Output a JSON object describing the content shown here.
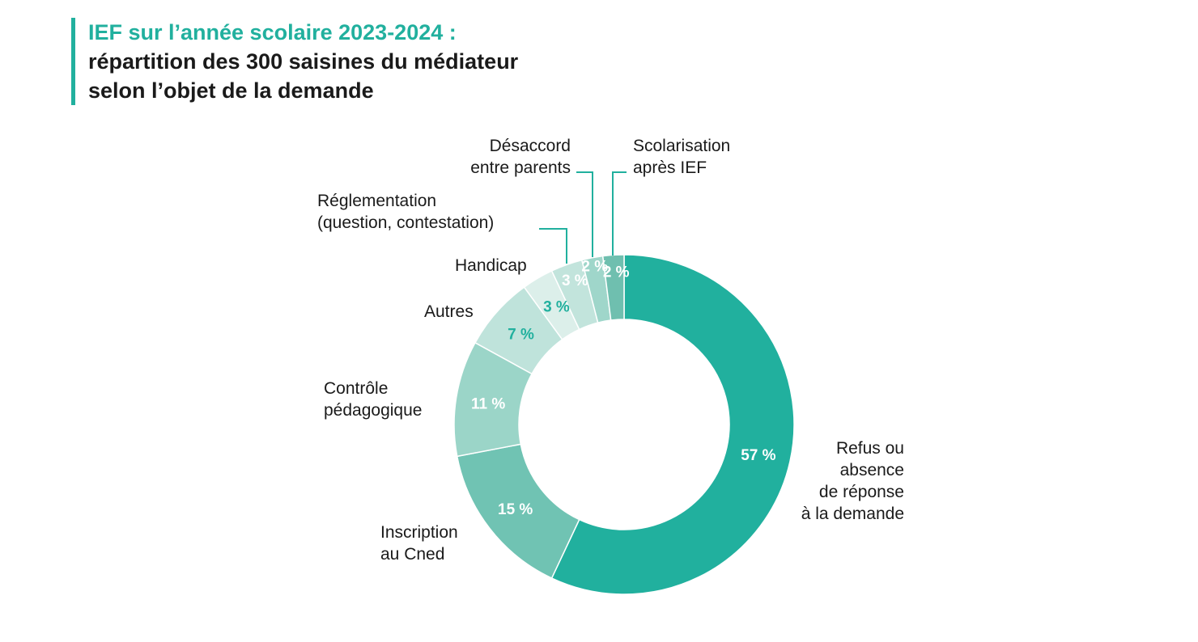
{
  "header": {
    "title": "IEF sur l’année scolaire 2023-2024 :",
    "subtitle_line1": "répartition des 300 saisines du médiateur",
    "subtitle_line2": "selon l’objet de la demande"
  },
  "colors": {
    "accent": "#21b09e",
    "text": "#1a1a1a"
  },
  "chart_data": {
    "type": "pie",
    "style": "donut",
    "total": 300,
    "unit": "%",
    "slices": [
      {
        "label": "Refus ou absence de réponse à la demande",
        "label_lines": [
          "Refus ou",
          "absence",
          "de réponse",
          "à la demande"
        ],
        "value": 57,
        "value_label": "57 %",
        "color": "#21b09e",
        "value_color": "#ffffff"
      },
      {
        "label": "Inscription au Cned",
        "label_lines": [
          "Inscription",
          "au Cned"
        ],
        "value": 15,
        "value_label": "15 %",
        "color": "#70c3b3",
        "value_color": "#ffffff"
      },
      {
        "label": "Contrôle pédagogique",
        "label_lines": [
          "Contrôle",
          "pédagogique"
        ],
        "value": 11,
        "value_label": "11 %",
        "color": "#9bd5c8",
        "value_color": "#ffffff"
      },
      {
        "label": "Autres",
        "label_lines": [
          "Autres"
        ],
        "value": 7,
        "value_label": "7 %",
        "color": "#bfe3db",
        "value_color": "#21b09e"
      },
      {
        "label": "Handicap",
        "label_lines": [
          "Handicap"
        ],
        "value": 3,
        "value_label": "3 %",
        "color": "#dcefea",
        "value_color": "#21b09e"
      },
      {
        "label": "Réglementation (question, contestation)",
        "label_lines": [
          "Réglementation",
          "(question, contestation)"
        ],
        "value": 3,
        "value_label": "3 %",
        "color": "#c2e4dc",
        "value_color": "#ffffff"
      },
      {
        "label": "Désaccord entre parents",
        "label_lines": [
          "Désaccord",
          "entre parents"
        ],
        "value": 2,
        "value_label": "2 %",
        "color": "#9fd6ca",
        "value_color": "#ffffff"
      },
      {
        "label": "Scolarisation après IEF",
        "label_lines": [
          "Scolarisation",
          "après IEF"
        ],
        "value": 2,
        "value_label": "2 %",
        "color": "#6fbfaf",
        "value_color": "#ffffff"
      }
    ]
  }
}
